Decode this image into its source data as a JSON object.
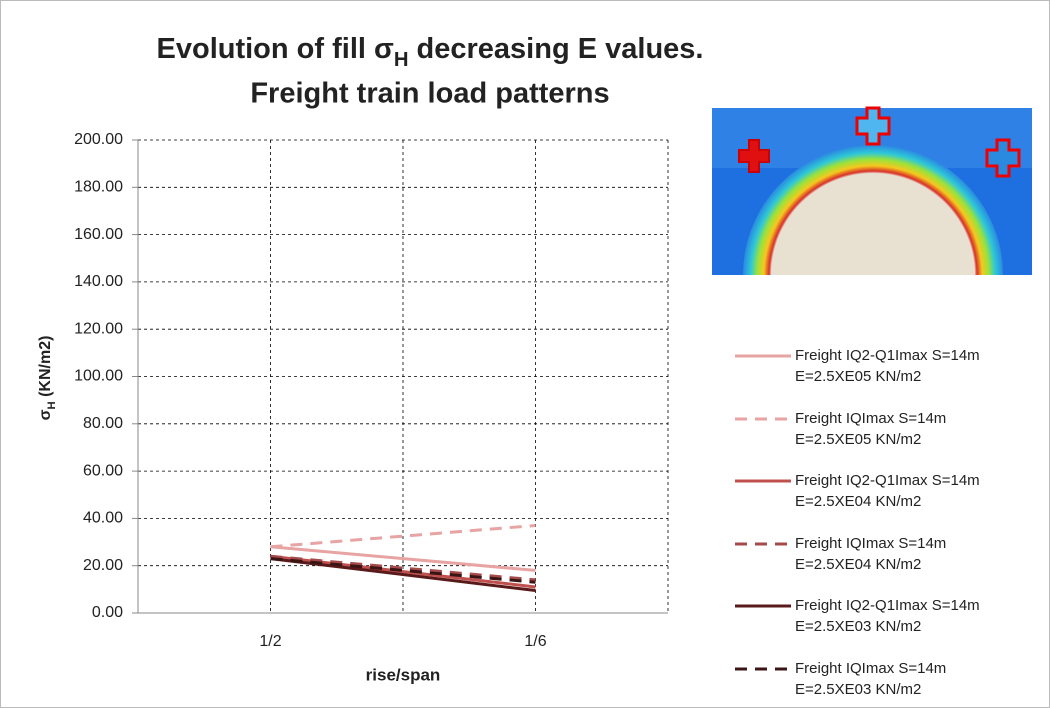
{
  "chart_data": {
    "type": "line",
    "title": [
      "Evolution of fill σ",
      "H",
      " decreasing E values.",
      "Freight train load patterns"
    ],
    "y_label": [
      "σ",
      "H",
      " (KN/m2)"
    ],
    "x_label": "rise/span",
    "categories": [
      "1/2",
      "1/6"
    ],
    "ylim": [
      0,
      200
    ],
    "yticks": [
      {
        "value": 0,
        "label": "0.00"
      },
      {
        "value": 20,
        "label": "20.00"
      },
      {
        "value": 40,
        "label": "40.00"
      },
      {
        "value": 60,
        "label": "60.00"
      },
      {
        "value": 80,
        "label": "80.00"
      },
      {
        "value": 100,
        "label": "100.00"
      },
      {
        "value": 120,
        "label": "120.00"
      },
      {
        "value": 140,
        "label": "140.00"
      },
      {
        "value": 160,
        "label": "160.00"
      },
      {
        "value": 180,
        "label": "180.00"
      },
      {
        "value": 200,
        "label": "200.00"
      }
    ],
    "grid": true,
    "series": [
      {
        "name": "Freight IQ2-Q1Imax S=14m\nE=2.5XE05 KN/m2",
        "color": "#e8a3a3",
        "dash": false,
        "values": [
          28,
          18
        ]
      },
      {
        "name": "Freight IQImax S=14m\nE=2.5XE05 KN/m2",
        "color": "#e8a3a3",
        "dash": true,
        "values": [
          28,
          37
        ]
      },
      {
        "name": "Freight IQ2-Q1Imax S=14m\nE=2.5XE04 KN/m2",
        "color": "#c0504d",
        "dash": false,
        "values": [
          24,
          11
        ]
      },
      {
        "name": "Freight IQImax S=14m\nE=2.5XE04 KN/m2",
        "color": "#a64b4b",
        "dash": true,
        "values": [
          24,
          14
        ]
      },
      {
        "name": "Freight IQ2-Q1Imax S=14m\nE=2.5XE03 KN/m2",
        "color": "#5a1a1a",
        "dash": false,
        "values": [
          23,
          9.5
        ]
      },
      {
        "name": "Freight IQImax S=14m\nE=2.5XE03 KN/m2",
        "color": "#3b1414",
        "dash": true,
        "values": [
          23,
          13
        ]
      }
    ]
  }
}
